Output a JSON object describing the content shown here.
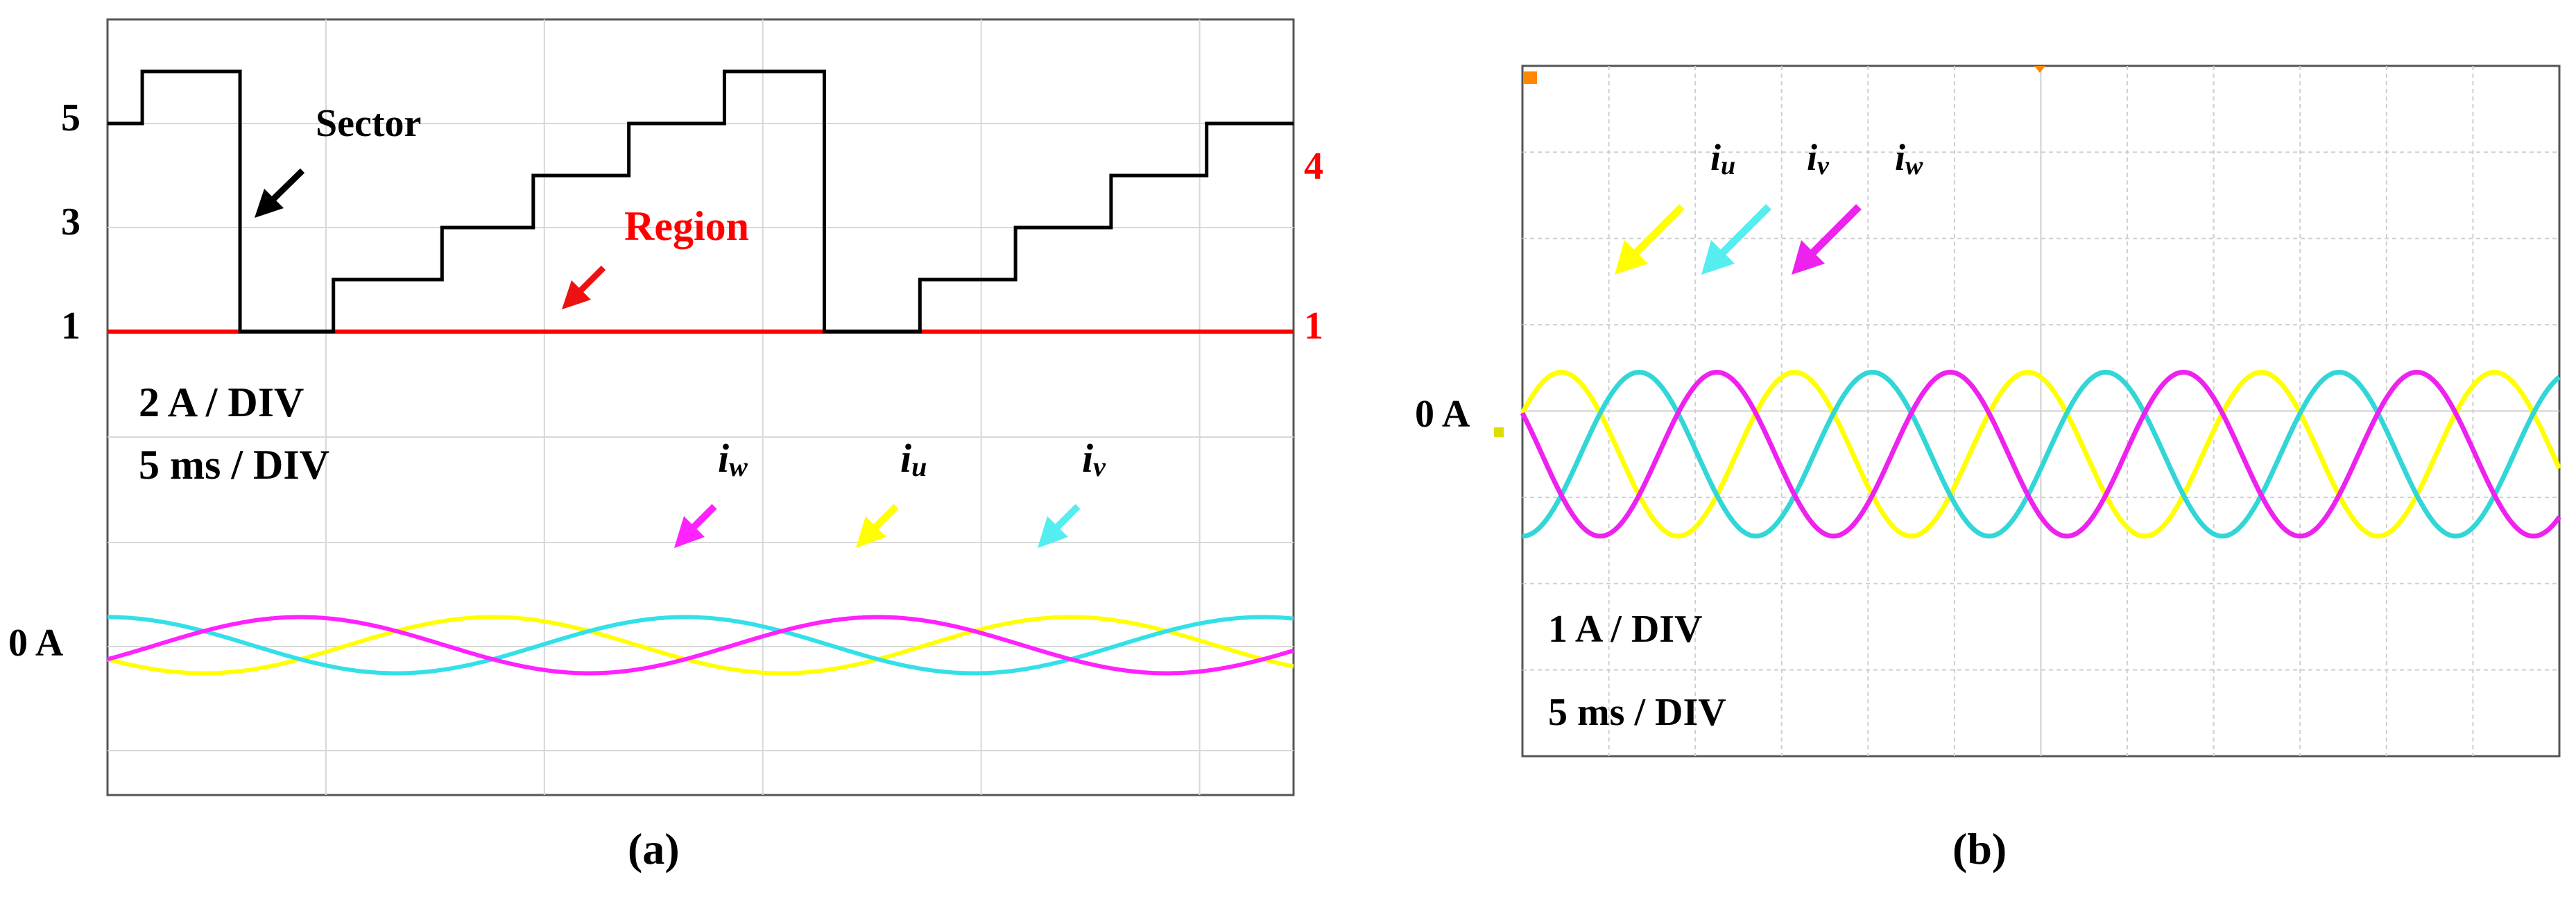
{
  "chart_data": [
    {
      "panel": "(a)",
      "type": "line",
      "y_tick_labels": [
        "5",
        "3",
        "1"
      ],
      "right_tick_labels": [
        "4",
        "1"
      ],
      "zero_label": "0 A",
      "scale_labels": [
        "2 A / DIV",
        "5 ms / DIV"
      ],
      "annotations": {
        "sector": "Sector",
        "region": "Region"
      },
      "current_labels": {
        "w": "w",
        "u": "u",
        "v": "v",
        "prefix": "i"
      },
      "time_per_div_ms": 5,
      "amplitude_per_div_A": 2,
      "xlim": [
        0,
        27.3
      ],
      "sector_steps": [
        {
          "t": 0,
          "value": 5
        },
        {
          "t": 0.8,
          "value": 6
        },
        {
          "t": 3.05,
          "value": 1
        },
        {
          "t": 5.2,
          "value": 2
        },
        {
          "t": 7.7,
          "value": 3
        },
        {
          "t": 9.8,
          "value": 4
        },
        {
          "t": 12.0,
          "value": 5
        },
        {
          "t": 14.2,
          "value": 6
        },
        {
          "t": 16.5,
          "value": 1
        },
        {
          "t": 18.7,
          "value": 2
        },
        {
          "t": 20.9,
          "value": 3
        },
        {
          "t": 23.1,
          "value": 4
        },
        {
          "t": 25.3,
          "value": 5
        }
      ],
      "region_value": 1,
      "series": [
        {
          "name": "iu",
          "color": "#ffff00",
          "amplitude_div": 0.45,
          "period_ms": 13.3,
          "phase_deg": 210
        },
        {
          "name": "iv",
          "color": "#33e0e8",
          "amplitude_div": 0.45,
          "period_ms": 13.3,
          "phase_deg": 90
        },
        {
          "name": "iw",
          "color": "#ff22ff",
          "amplitude_div": 0.45,
          "period_ms": 13.3,
          "phase_deg": -30
        }
      ]
    },
    {
      "panel": "(b)",
      "type": "line",
      "zero_label": "0 A",
      "scale_labels": [
        "1 A / DIV",
        "5 ms / DIV"
      ],
      "current_labels": {
        "u": "u",
        "v": "v",
        "w": "w",
        "prefix": "i"
      },
      "time_per_div_ms": 5,
      "amplitude_per_div_A": 1,
      "xlim": [
        0,
        60
      ],
      "series": [
        {
          "name": "iu",
          "color": "#ffff00",
          "amplitude_div": 0.95,
          "period_ms": 13.5,
          "phase_deg": 30
        },
        {
          "name": "iv",
          "color": "#33d6d6",
          "amplitude_div": 0.95,
          "period_ms": 13.5,
          "phase_deg": -90
        },
        {
          "name": "iw",
          "color": "#ee22ee",
          "amplitude_div": 0.95,
          "period_ms": 13.5,
          "phase_deg": 150
        }
      ]
    }
  ],
  "captions": {
    "a": "(a)",
    "b": "(b)"
  },
  "colors": {
    "sector": "#000000",
    "region": "#ff0000",
    "arrow_region": "#ee1111"
  }
}
